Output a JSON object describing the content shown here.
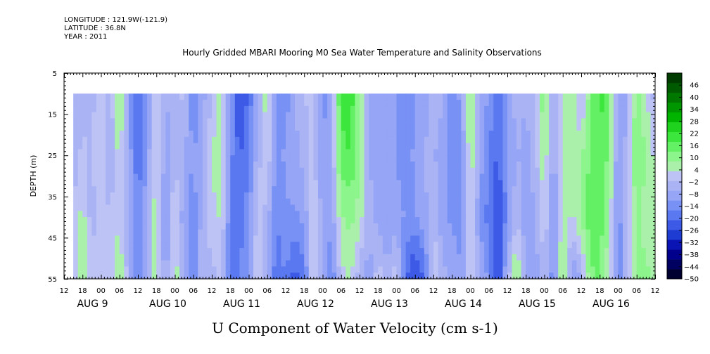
{
  "header": {
    "longitude": "LONGITUDE : 121.9W(-121.9)",
    "latitude": "LATITUDE : 36.8N",
    "year": "YEAR : 2011",
    "title": "Hourly Gridded MBARI Mooring M0 Sea Water Temperature and Salinity Observations"
  },
  "chart_data": {
    "type": "heatmap",
    "title": "Hourly Gridded MBARI Mooring M0 Sea Water Temperature and Salinity Observations",
    "xlabel": "U Component of Water Velocity (cm s-1)",
    "ylabel": "DEPTH (m)",
    "y_ticks": [
      5,
      15,
      25,
      35,
      45,
      55
    ],
    "ylim": [
      5,
      55
    ],
    "y_inverted": true,
    "x_hour_ticks": [
      "12",
      "18",
      "00",
      "06",
      "12",
      "18",
      "00",
      "06",
      "12",
      "18",
      "00",
      "06",
      "12",
      "18",
      "00",
      "06",
      "12",
      "18",
      "00",
      "06",
      "12",
      "18",
      "00",
      "06",
      "12",
      "18",
      "00",
      "06",
      "12",
      "18",
      "00",
      "06",
      "12"
    ],
    "x_day_labels": [
      "AUG  9",
      "AUG 10",
      "AUG 11",
      "AUG 12",
      "AUG 13",
      "AUG 14",
      "AUG 15",
      "AUG 16"
    ],
    "x_time_range_hours": [
      -12,
      180
    ],
    "data_time_range_hours": [
      -9,
      180
    ],
    "data_depth_range": [
      10,
      55
    ],
    "colorbar": {
      "labels": [
        46,
        40,
        34,
        28,
        22,
        16,
        10,
        4,
        -2,
        -8,
        -14,
        -20,
        -26,
        -32,
        -38,
        -44,
        -50
      ],
      "range": [
        -50,
        52
      ],
      "colors": [
        "#000030",
        "#000060",
        "#00008c",
        "#0a14b4",
        "#1e3cd2",
        "#3c5ae6",
        "#5a78f0",
        "#7891f5",
        "#96a5f5",
        "#aab4f5",
        "#bec3f5",
        "#aaf0aa",
        "#8cf58c",
        "#64f064",
        "#3ce63c",
        "#1ed21e",
        "#00b400",
        "#009600",
        "#007800",
        "#005a00",
        "#003c00"
      ]
    },
    "columns": [
      {
        "t": -9,
        "v": [
          -6,
          -4,
          -2,
          -4
        ]
      },
      {
        "t": -6,
        "v": [
          -4,
          0,
          6,
          10
        ]
      },
      {
        "t": -3,
        "v": [
          -3,
          -2,
          -4,
          0
        ]
      },
      {
        "t": 0,
        "v": [
          2,
          4,
          2,
          4
        ]
      },
      {
        "t": 3,
        "v": [
          -4,
          -6,
          -2,
          0
        ]
      },
      {
        "t": 6,
        "v": [
          10,
          6,
          4,
          8
        ]
      },
      {
        "t": 9,
        "v": [
          -10,
          -8,
          -6,
          -4
        ]
      },
      {
        "t": 12,
        "v": [
          -22,
          -20,
          -16,
          -14
        ]
      },
      {
        "t": 15,
        "v": [
          -14,
          -10,
          -8,
          -4
        ]
      },
      {
        "t": 18,
        "v": [
          4,
          6,
          8,
          6
        ]
      },
      {
        "t": 21,
        "v": [
          -6,
          -10,
          -12,
          -10
        ]
      },
      {
        "t": 24,
        "v": [
          -4,
          -2,
          4,
          8
        ]
      },
      {
        "t": 27,
        "v": [
          0,
          -6,
          -10,
          -8
        ]
      },
      {
        "t": 30,
        "v": [
          -16,
          -12,
          -14,
          -16
        ]
      },
      {
        "t": 33,
        "v": [
          -8,
          -6,
          -4,
          -2
        ]
      },
      {
        "t": 36,
        "v": [
          -2,
          4,
          2,
          -4
        ]
      },
      {
        "t": 39,
        "v": [
          6,
          8,
          4,
          2
        ]
      },
      {
        "t": 42,
        "v": [
          -12,
          -14,
          -16,
          -18
        ]
      },
      {
        "t": 45,
        "v": [
          -26,
          -22,
          -18,
          -16
        ]
      },
      {
        "t": 48,
        "v": [
          -20,
          -16,
          -14,
          -12
        ]
      },
      {
        "t": 51,
        "v": [
          -8,
          -4,
          2,
          4
        ]
      },
      {
        "t": 54,
        "v": [
          8,
          4,
          -4,
          -8
        ]
      },
      {
        "t": 57,
        "v": [
          -12,
          -14,
          -16,
          -20
        ]
      },
      {
        "t": 60,
        "v": [
          -14,
          -10,
          -12,
          -16
        ]
      },
      {
        "t": 63,
        "v": [
          -6,
          -8,
          -12,
          -24
        ]
      },
      {
        "t": 66,
        "v": [
          -2,
          -4,
          -10,
          -18
        ]
      },
      {
        "t": 69,
        "v": [
          2,
          0,
          4,
          6
        ]
      },
      {
        "t": 72,
        "v": [
          -14,
          -12,
          -8,
          -6
        ]
      },
      {
        "t": 75,
        "v": [
          -4,
          -6,
          -10,
          -16
        ]
      },
      {
        "t": 78,
        "v": [
          20,
          16,
          8,
          2
        ]
      },
      {
        "t": 81,
        "v": [
          22,
          18,
          10,
          4
        ]
      },
      {
        "t": 84,
        "v": [
          8,
          10,
          6,
          -4
        ]
      },
      {
        "t": 87,
        "v": [
          -8,
          -6,
          -4,
          -10
        ]
      },
      {
        "t": 90,
        "v": [
          -12,
          -10,
          -8,
          2
        ]
      },
      {
        "t": 93,
        "v": [
          -6,
          -8,
          -10,
          -6
        ]
      },
      {
        "t": 96,
        "v": [
          -10,
          -12,
          -8,
          2
        ]
      },
      {
        "t": 99,
        "v": [
          -16,
          -14,
          -12,
          -20
        ]
      },
      {
        "t": 102,
        "v": [
          -12,
          -10,
          -12,
          -28
        ]
      },
      {
        "t": 105,
        "v": [
          -8,
          -6,
          -8,
          -20
        ]
      },
      {
        "t": 108,
        "v": [
          -4,
          -6,
          -2,
          4
        ]
      },
      {
        "t": 111,
        "v": [
          -6,
          -8,
          -10,
          -4
        ]
      },
      {
        "t": 114,
        "v": [
          -14,
          -16,
          -12,
          -8
        ]
      },
      {
        "t": 117,
        "v": [
          -10,
          -12,
          -14,
          -10
        ]
      },
      {
        "t": 120,
        "v": [
          10,
          8,
          6,
          4
        ]
      },
      {
        "t": 123,
        "v": [
          -6,
          -8,
          -12,
          -6
        ]
      },
      {
        "t": 126,
        "v": [
          -12,
          -16,
          -18,
          -12
        ]
      },
      {
        "t": 129,
        "v": [
          -18,
          -22,
          -26,
          -28
        ]
      },
      {
        "t": 132,
        "v": [
          -10,
          -12,
          -14,
          -4
        ]
      },
      {
        "t": 135,
        "v": [
          -4,
          -6,
          -2,
          12
        ]
      },
      {
        "t": 138,
        "v": [
          -6,
          -8,
          -10,
          -8
        ]
      },
      {
        "t": 141,
        "v": [
          -2,
          -4,
          -6,
          -10
        ]
      },
      {
        "t": 144,
        "v": [
          14,
          8,
          4,
          -4
        ]
      },
      {
        "t": 147,
        "v": [
          -8,
          -10,
          -12,
          -14
        ]
      },
      {
        "t": 150,
        "v": [
          2,
          6,
          8,
          10
        ]
      },
      {
        "t": 153,
        "v": [
          8,
          4,
          2,
          -12
        ]
      },
      {
        "t": 156,
        "v": [
          -4,
          8,
          10,
          -6
        ]
      },
      {
        "t": 159,
        "v": [
          12,
          14,
          16,
          12
        ]
      },
      {
        "t": 162,
        "v": [
          20,
          18,
          16,
          14
        ]
      },
      {
        "t": 165,
        "v": [
          14,
          12,
          8,
          4
        ]
      },
      {
        "t": 168,
        "v": [
          -10,
          -12,
          -14,
          -16
        ]
      },
      {
        "t": 171,
        "v": [
          -6,
          -4,
          -2,
          0
        ]
      },
      {
        "t": 174,
        "v": [
          12,
          14,
          10,
          8
        ]
      },
      {
        "t": 177,
        "v": [
          4,
          8,
          6,
          10
        ]
      },
      {
        "t": 180,
        "v": [
          -4,
          2,
          4,
          6
        ]
      }
    ],
    "column_depths": [
      10,
      25,
      40,
      55
    ]
  }
}
